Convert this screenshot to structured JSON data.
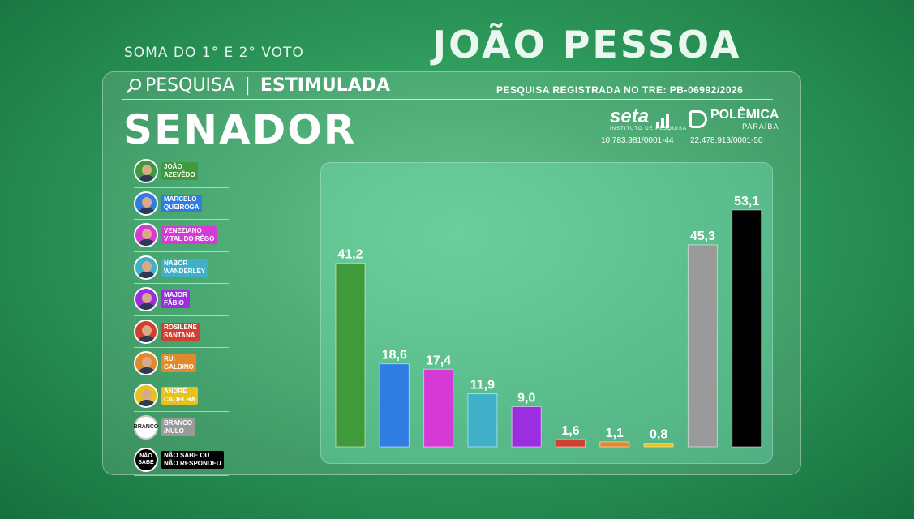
{
  "header": {
    "subtitle": "SOMA DO 1° E 2° VOTO",
    "city": "JOÃO PESSOA"
  },
  "survey": {
    "label_light": "PESQUISA",
    "label_bold": "ESTIMULADA",
    "registry": "PESQUISA REGISTRADA NO TRE: PB-06992/2026",
    "office": "SENADOR"
  },
  "sponsors": [
    {
      "name": "seta",
      "sub": "INSTITUTO DE PESQUISA",
      "cnpj": "10.783.981/0001-44"
    },
    {
      "name": "POLÊMICA",
      "sub": "PARAÍBA",
      "cnpj": "22.478.913/0001-50"
    }
  ],
  "candidates": [
    {
      "label": "JOÃO\nAZEVÊDO",
      "color": "#3f9a3c",
      "kind": "photo"
    },
    {
      "label": "MARCELO\nQUEIROGA",
      "color": "#2f7de0",
      "kind": "photo"
    },
    {
      "label": "VENEZIANO\nVITAL DO RÊGO",
      "color": "#d63ad6",
      "kind": "photo"
    },
    {
      "label": "NABOR\nWANDERLEY",
      "color": "#3fb0c8",
      "kind": "photo"
    },
    {
      "label": "MAJOR\nFÁBIO",
      "color": "#9b2ee0",
      "kind": "photo"
    },
    {
      "label": "ROSILENE\nSANTANA",
      "color": "#d0402e",
      "kind": "photo"
    },
    {
      "label": "RUI\nGALDINO",
      "color": "#e08a2c",
      "kind": "photo"
    },
    {
      "label": "ANDRÉ\nCADELHA",
      "color": "#e6c21f",
      "kind": "photo"
    },
    {
      "label": "BRANCO\n/NULO",
      "color": "#9a9a9a",
      "kind": "badge",
      "badge": "BRANCO",
      "badge_bg": "#ffffff",
      "badge_fg": "#222222"
    },
    {
      "label": "NÃO SABE OU\nNÃO RESPONDEU",
      "color": "#000000",
      "kind": "badge",
      "badge": "NÃO\nSABE",
      "badge_bg": "#000000",
      "badge_fg": "#ffffff"
    }
  ],
  "chart_data": {
    "type": "bar",
    "categories": [
      "JOÃO AZEVÊDO",
      "MARCELO QUEIROGA",
      "VENEZIANO VITAL DO RÊGO",
      "NABOR WANDERLEY",
      "MAJOR FÁBIO",
      "ROSILENE SANTANA",
      "RUI GALDINO",
      "ANDRÉ CADELHA",
      "BRANCO /NULO",
      "NÃO SABE OU NÃO RESPONDEU"
    ],
    "values": [
      41.2,
      18.6,
      17.4,
      11.9,
      9.0,
      1.6,
      1.1,
      0.8,
      45.3,
      53.1
    ],
    "value_labels": [
      "41,2",
      "18,6",
      "17,4",
      "11,9",
      "9,0",
      "1,6",
      "1,1",
      "0,8",
      "45,3",
      "53,1"
    ],
    "colors": [
      "#3f9a3c",
      "#2f7de0",
      "#d63ad6",
      "#3fb0c8",
      "#9b2ee0",
      "#d0402e",
      "#e08a2c",
      "#e6c21f",
      "#9a9a9a",
      "#000000"
    ],
    "ylim": [
      0,
      60
    ],
    "grid": false,
    "title": "",
    "xlabel": "",
    "ylabel": ""
  }
}
